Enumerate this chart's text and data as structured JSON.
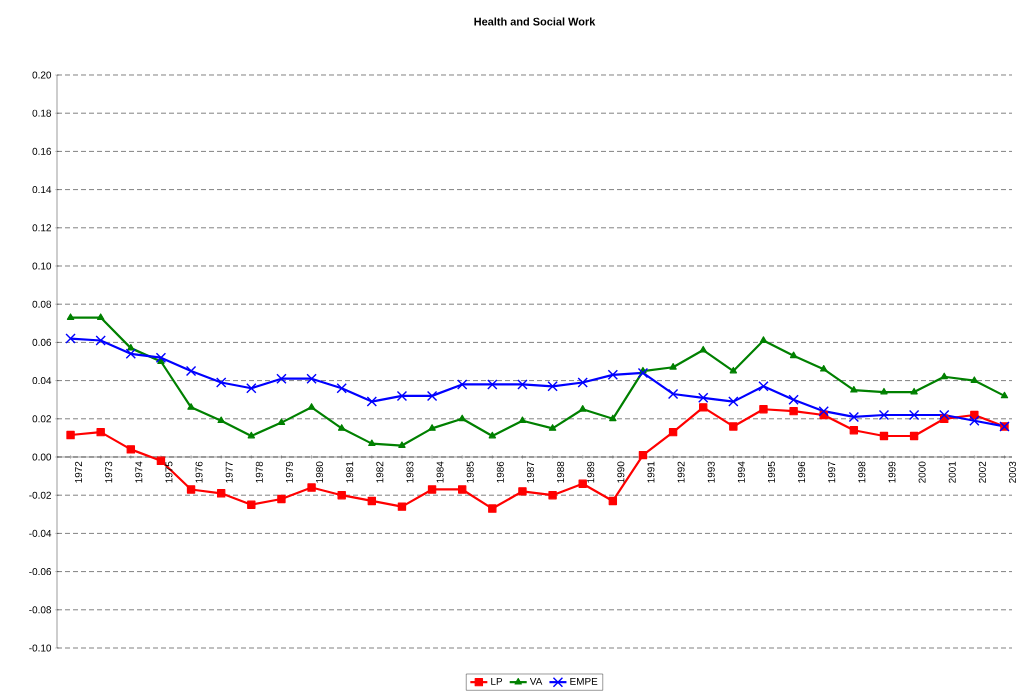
{
  "chart_data": {
    "type": "line",
    "title": "Health and Social Work",
    "categories": [
      "1972",
      "1973",
      "1974",
      "1975",
      "1976",
      "1977",
      "1978",
      "1979",
      "1980",
      "1981",
      "1982",
      "1983",
      "1984",
      "1985",
      "1986",
      "1987",
      "1988",
      "1989",
      "1990",
      "1991",
      "1992",
      "1993",
      "1994",
      "1995",
      "1996",
      "1997",
      "1998",
      "1999",
      "2000",
      "2001",
      "2002",
      "2003"
    ],
    "series": [
      {
        "name": "LP",
        "color": "#ff0000",
        "marker": "square",
        "values": [
          0.0115,
          0.013,
          0.004,
          -0.002,
          -0.017,
          -0.019,
          -0.025,
          -0.022,
          -0.016,
          -0.02,
          -0.023,
          -0.026,
          -0.017,
          -0.017,
          -0.027,
          -0.018,
          -0.02,
          -0.014,
          -0.023,
          0.001,
          0.013,
          0.026,
          0.016,
          0.025,
          0.024,
          0.022,
          0.014,
          0.011,
          0.011,
          0.02,
          0.022,
          0.016
        ]
      },
      {
        "name": "VA",
        "color": "#008000",
        "marker": "triangle",
        "values": [
          0.073,
          0.073,
          0.057,
          0.05,
          0.026,
          0.019,
          0.011,
          0.018,
          0.026,
          0.015,
          0.007,
          0.006,
          0.015,
          0.02,
          0.011,
          0.019,
          0.015,
          0.025,
          0.02,
          0.045,
          0.047,
          0.056,
          0.045,
          0.061,
          0.053,
          0.046,
          0.035,
          0.034,
          0.034,
          0.042,
          0.04,
          0.032
        ]
      },
      {
        "name": "EMPE",
        "color": "#0000ff",
        "marker": "cross",
        "values": [
          0.062,
          0.061,
          0.054,
          0.052,
          0.045,
          0.039,
          0.036,
          0.041,
          0.041,
          0.036,
          0.029,
          0.032,
          0.032,
          0.038,
          0.038,
          0.038,
          0.037,
          0.039,
          0.043,
          0.044,
          0.033,
          0.031,
          0.029,
          0.037,
          0.03,
          0.024,
          0.021,
          0.022,
          0.022,
          0.022,
          0.019,
          0.016
        ]
      }
    ],
    "ylim": [
      -0.1,
      0.2
    ],
    "yticks": [
      {
        "value": -0.1,
        "label": "-0.10"
      },
      {
        "value": -0.08,
        "label": "-0.08"
      },
      {
        "value": -0.06,
        "label": "-0.06"
      },
      {
        "value": -0.04,
        "label": "-0.04"
      },
      {
        "value": -0.02,
        "label": "-0.02"
      },
      {
        "value": 0.0,
        "label": "0.00"
      },
      {
        "value": 0.02,
        "label": "0.02"
      },
      {
        "value": 0.04,
        "label": "0.04"
      },
      {
        "value": 0.06,
        "label": "0.06"
      },
      {
        "value": 0.08,
        "label": "0.08"
      },
      {
        "value": 0.1,
        "label": "0.10"
      },
      {
        "value": 0.12,
        "label": "0.12"
      },
      {
        "value": 0.14,
        "label": "0.14"
      },
      {
        "value": 0.16,
        "label": "0.16"
      },
      {
        "value": 0.18,
        "label": "0.18"
      },
      {
        "value": 0.2,
        "label": "0.20"
      }
    ],
    "grid": "y",
    "legend": "bottom"
  }
}
